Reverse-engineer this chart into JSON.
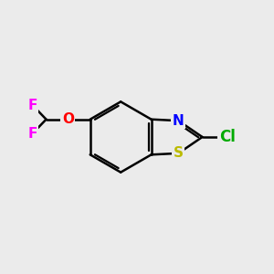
{
  "bg_color": "#ebebeb",
  "bond_color": "#000000",
  "bond_width": 1.8,
  "atom_colors": {
    "C": "#000000",
    "N": "#0000ff",
    "S": "#bbbb00",
    "O": "#ff0000",
    "F": "#ff00ff",
    "Cl": "#00aa00"
  },
  "font_size": 11,
  "fig_size": [
    3.0,
    3.0
  ],
  "dpi": 100
}
